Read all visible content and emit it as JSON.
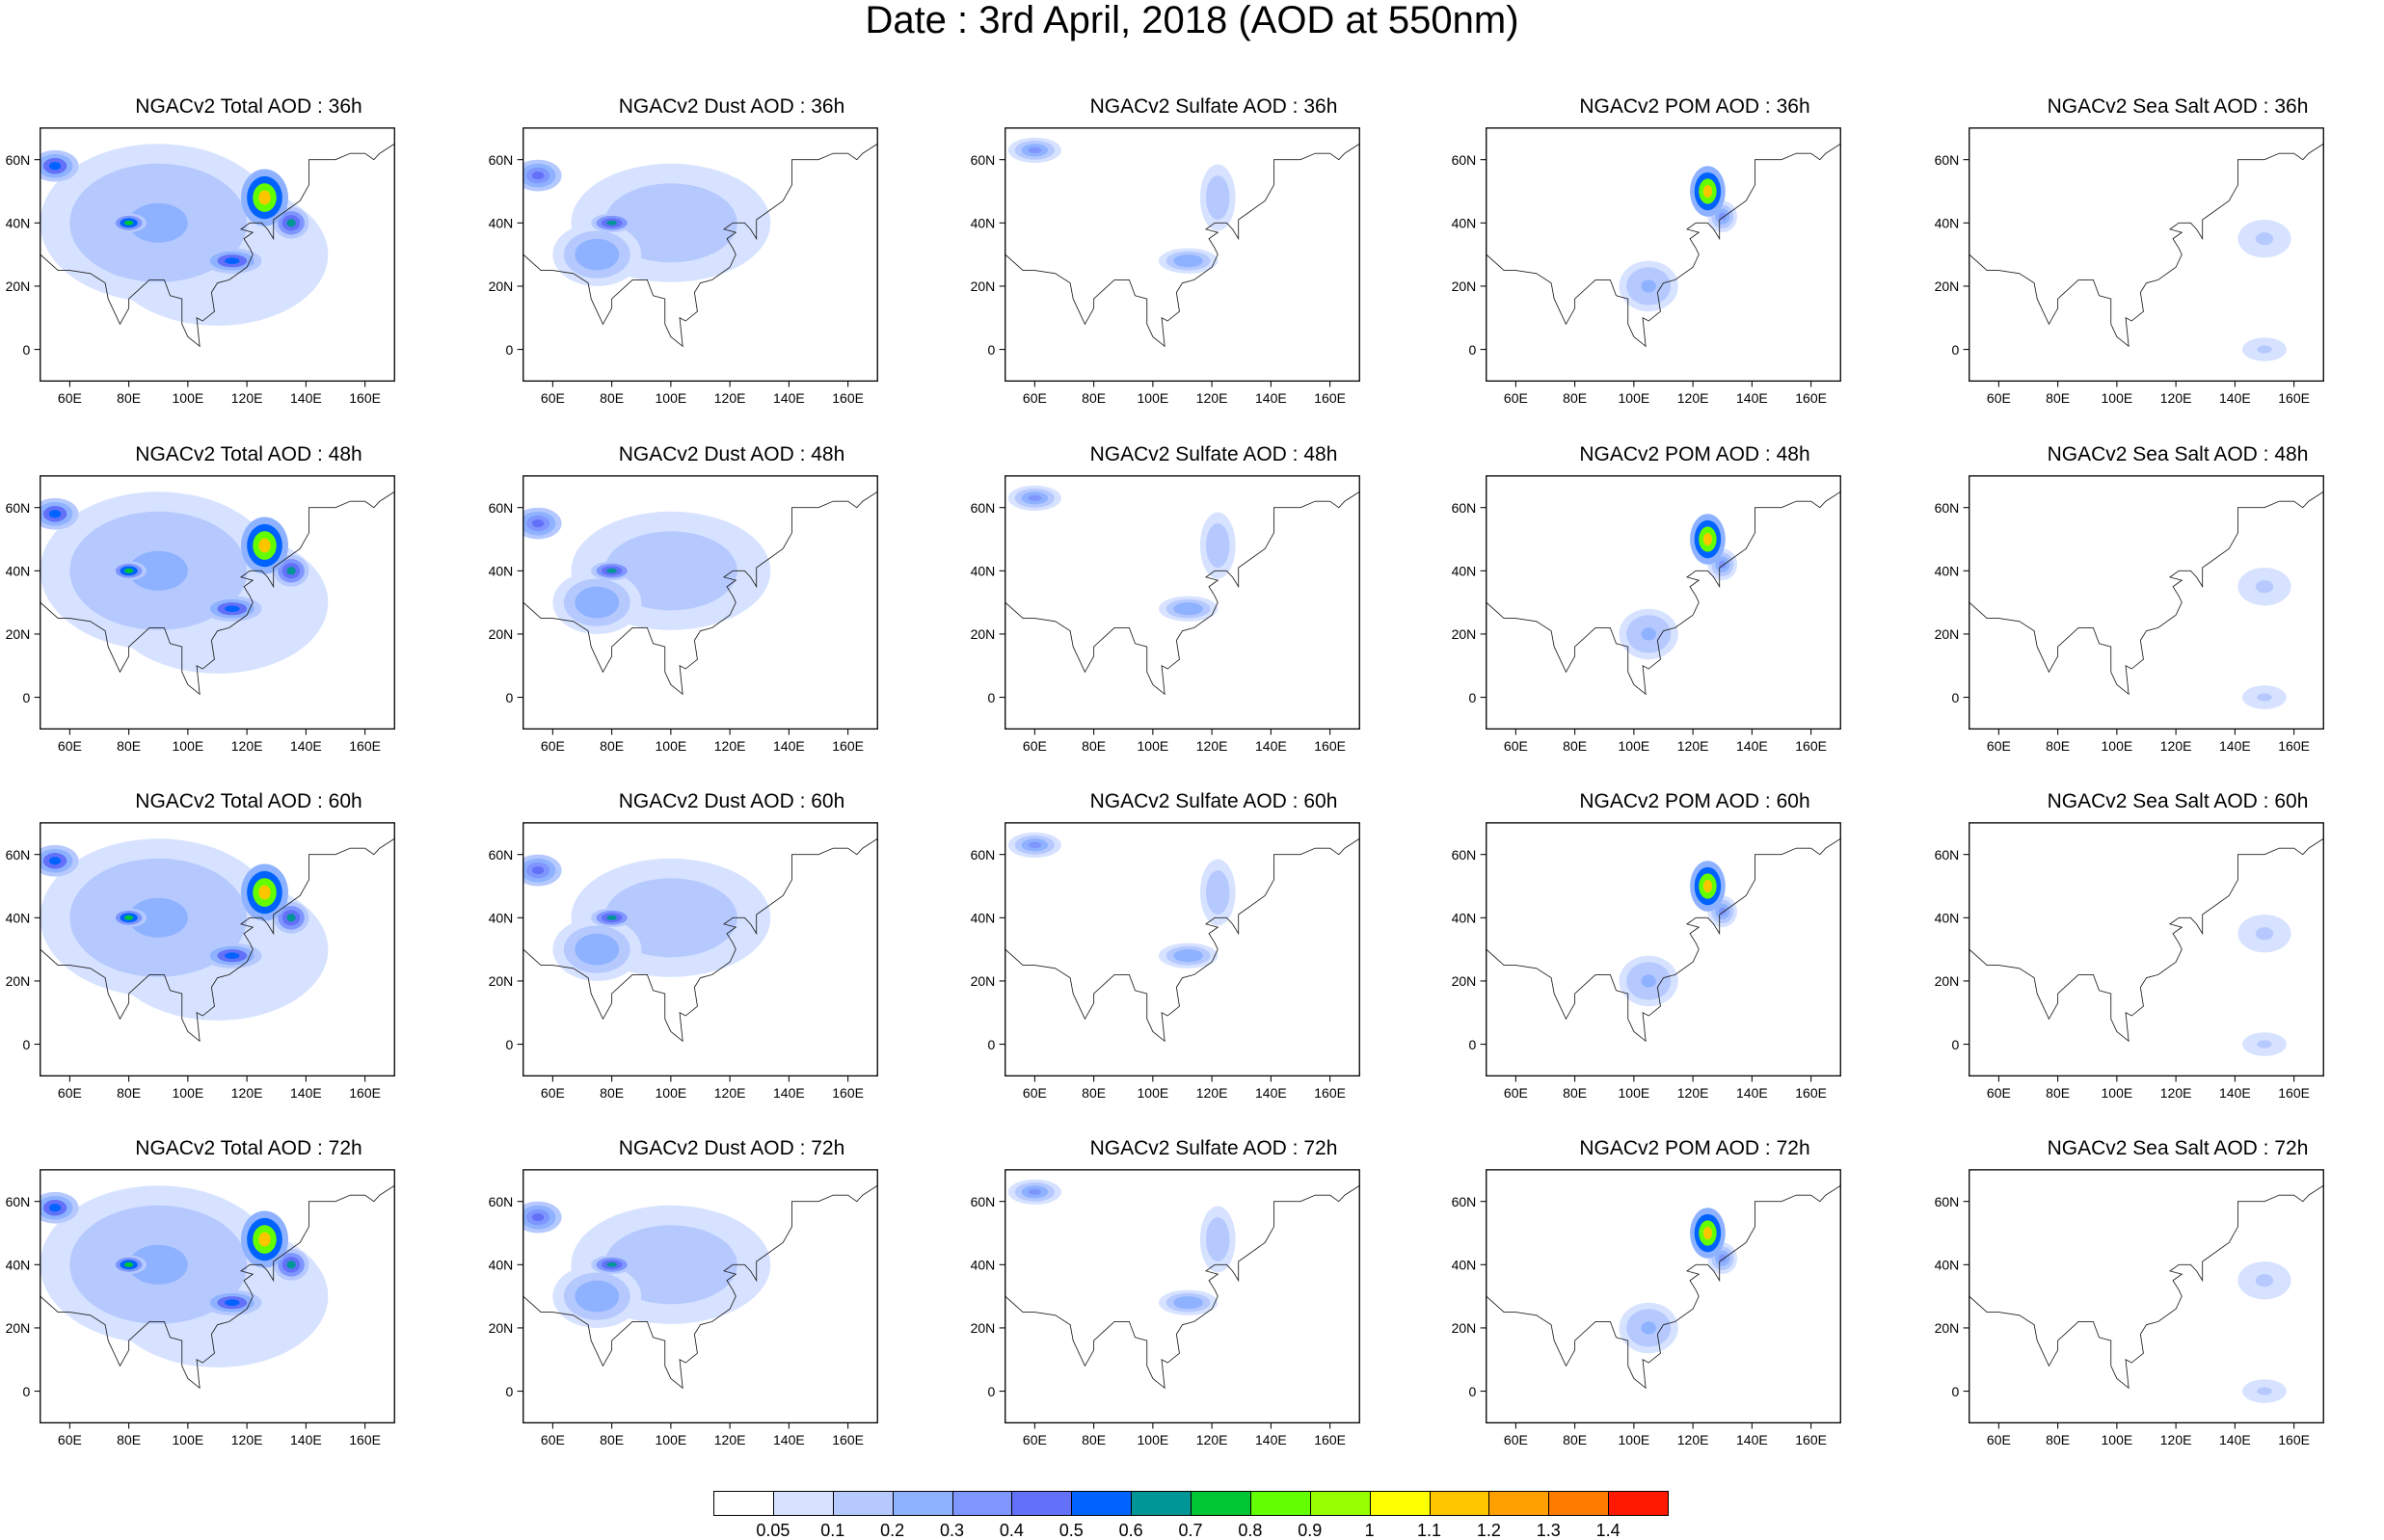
{
  "title": "Date : 3rd April, 2018 (AOD at 550nm)",
  "panels": [
    {
      "title": "NGACv2 Total AOD : 36h",
      "field": "total",
      "hour": 36
    },
    {
      "title": "NGACv2 Dust AOD : 36h",
      "field": "dust",
      "hour": 36
    },
    {
      "title": "NGACv2 Sulfate AOD : 36h",
      "field": "sulfate",
      "hour": 36
    },
    {
      "title": "NGACv2 POM AOD : 36h",
      "field": "pom",
      "hour": 36
    },
    {
      "title": "NGACv2 Sea Salt AOD : 36h",
      "field": "seasalt",
      "hour": 36
    },
    {
      "title": "NGACv2 Total AOD : 48h",
      "field": "total",
      "hour": 48
    },
    {
      "title": "NGACv2 Dust AOD : 48h",
      "field": "dust",
      "hour": 48
    },
    {
      "title": "NGACv2 Sulfate AOD : 48h",
      "field": "sulfate",
      "hour": 48
    },
    {
      "title": "NGACv2 POM AOD : 48h",
      "field": "pom",
      "hour": 48
    },
    {
      "title": "NGACv2 Sea Salt AOD : 48h",
      "field": "seasalt",
      "hour": 48
    },
    {
      "title": "NGACv2 Total AOD : 60h",
      "field": "total",
      "hour": 60
    },
    {
      "title": "NGACv2 Dust AOD : 60h",
      "field": "dust",
      "hour": 60
    },
    {
      "title": "NGACv2 Sulfate AOD : 60h",
      "field": "sulfate",
      "hour": 60
    },
    {
      "title": "NGACv2 POM AOD : 60h",
      "field": "pom",
      "hour": 60
    },
    {
      "title": "NGACv2 Sea Salt AOD : 60h",
      "field": "seasalt",
      "hour": 60
    },
    {
      "title": "NGACv2 Total AOD : 72h",
      "field": "total",
      "hour": 72
    },
    {
      "title": "NGACv2 Dust AOD : 72h",
      "field": "dust",
      "hour": 72
    },
    {
      "title": "NGACv2 Sulfate AOD : 72h",
      "field": "sulfate",
      "hour": 72
    },
    {
      "title": "NGACv2 POM AOD : 72h",
      "field": "pom",
      "hour": 72
    },
    {
      "title": "NGACv2 Sea Salt  AOD : 72h",
      "field": "seasalt",
      "hour": 72
    }
  ],
  "map": {
    "lon_range": [
      50,
      170
    ],
    "lat_range": [
      -10,
      70
    ],
    "lon_ticks": [
      60,
      80,
      100,
      120,
      140,
      160
    ],
    "lon_tick_labels": [
      "60E",
      "80E",
      "100E",
      "120E",
      "140E",
      "160E"
    ],
    "lat_ticks": [
      60,
      40,
      20,
      0
    ],
    "lat_tick_labels": [
      "60N",
      "40N",
      "20N",
      "0"
    ]
  },
  "colorbar": {
    "labels": [
      "0.05",
      "0.1",
      "0.2",
      "0.3",
      "0.4",
      "0.5",
      "0.6",
      "0.7",
      "0.8",
      "0.9",
      "1",
      "1.1",
      "1.2",
      "1.3",
      "1.4"
    ],
    "colors": [
      "#ffffff",
      "#d6e2ff",
      "#b5c9ff",
      "#8eb2ff",
      "#7f96ff",
      "#6370f8",
      "#0063ff",
      "#009696",
      "#00c633",
      "#63ff00",
      "#96ff00",
      "#ffff00",
      "#ffc600",
      "#ffa000",
      "#ff7c00",
      "#ff1900"
    ]
  },
  "plumes": {
    "total": [
      {
        "lon": 126,
        "lat": 48,
        "rx": 8,
        "ry": 9,
        "v": 1.2
      },
      {
        "lon": 135,
        "lat": 40,
        "rx": 6,
        "ry": 5,
        "v": 0.7
      },
      {
        "lon": 80,
        "lat": 40,
        "rx": 6,
        "ry": 3,
        "v": 0.8
      },
      {
        "lon": 115,
        "lat": 28,
        "rx": 10,
        "ry": 4,
        "v": 0.6
      },
      {
        "lon": 55,
        "lat": 58,
        "rx": 8,
        "ry": 5,
        "v": 0.6
      },
      {
        "lon": 90,
        "lat": 40,
        "rx": 40,
        "ry": 25,
        "v": 0.25
      },
      {
        "lon": 110,
        "lat": 30,
        "rx": 50,
        "ry": 30,
        "v": 0.12
      }
    ],
    "dust": [
      {
        "lon": 80,
        "lat": 40,
        "rx": 7,
        "ry": 3,
        "v": 0.7
      },
      {
        "lon": 55,
        "lat": 55,
        "rx": 8,
        "ry": 5,
        "v": 0.5
      },
      {
        "lon": 75,
        "lat": 30,
        "rx": 15,
        "ry": 10,
        "v": 0.3
      },
      {
        "lon": 100,
        "lat": 40,
        "rx": 45,
        "ry": 25,
        "v": 0.15
      }
    ],
    "sulfate": [
      {
        "lon": 60,
        "lat": 63,
        "rx": 9,
        "ry": 4,
        "v": 0.4
      },
      {
        "lon": 112,
        "lat": 28,
        "rx": 10,
        "ry": 4,
        "v": 0.3
      },
      {
        "lon": 122,
        "lat": 48,
        "rx": 8,
        "ry": 14,
        "v": 0.15
      }
    ],
    "pom": [
      {
        "lon": 125,
        "lat": 50,
        "rx": 6,
        "ry": 8,
        "v": 1.2
      },
      {
        "lon": 105,
        "lat": 20,
        "rx": 10,
        "ry": 8,
        "v": 0.25
      },
      {
        "lon": 130,
        "lat": 42,
        "rx": 5,
        "ry": 5,
        "v": 0.4
      }
    ],
    "seasalt": [
      {
        "lon": 150,
        "lat": 35,
        "rx": 12,
        "ry": 8,
        "v": 0.12
      },
      {
        "lon": 150,
        "lat": 0,
        "rx": 10,
        "ry": 5,
        "v": 0.12
      }
    ]
  }
}
